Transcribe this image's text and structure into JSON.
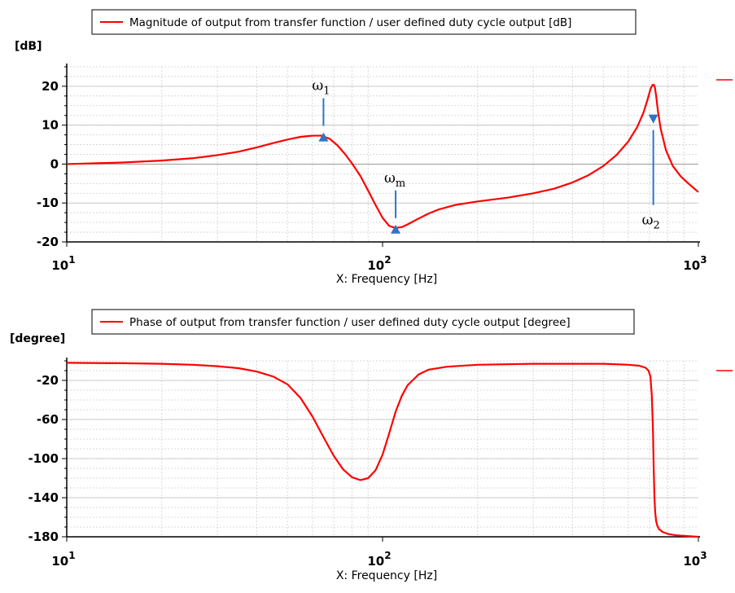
{
  "chart_data": [
    {
      "type": "line",
      "legend": "Magnitude of output from transfer function / user defined duty cycle output [dB]",
      "legend_position": "top",
      "ylabel": "[dB]",
      "xlabel": "X: Frequency [Hz]",
      "xscale": "log",
      "xlim": [
        10,
        1000
      ],
      "ylim": [
        -20,
        25
      ],
      "yticks": [
        20,
        10,
        0,
        -10,
        -20
      ],
      "xticks": [
        "10",
        "100",
        "1000"
      ],
      "grid": true,
      "color": "#ff0000",
      "series": [
        {
          "x": [
            10,
            15,
            20,
            25,
            30,
            35,
            40,
            45,
            50,
            55,
            60,
            64,
            68,
            72,
            76,
            80,
            85,
            90,
            95,
            100,
            105,
            110,
            115,
            120,
            130,
            140,
            150,
            170,
            200,
            250,
            300,
            350,
            400,
            450,
            500,
            550,
            600,
            640,
            670,
            690,
            705,
            715,
            722,
            728,
            735,
            745,
            760,
            790,
            830,
            880,
            930,
            980,
            1000
          ],
          "y": [
            0,
            0.4,
            0.9,
            1.5,
            2.3,
            3.2,
            4.3,
            5.4,
            6.3,
            7.0,
            7.3,
            7.3,
            6.5,
            4.8,
            2.6,
            0.2,
            -3.0,
            -6.8,
            -10.5,
            -13.8,
            -15.9,
            -16.4,
            -16.2,
            -15.5,
            -14.0,
            -12.7,
            -11.7,
            -10.5,
            -9.6,
            -8.6,
            -7.5,
            -6.3,
            -4.7,
            -2.8,
            -0.5,
            2.3,
            5.8,
            9.5,
            13.2,
            16.5,
            19.2,
            20.3,
            20.4,
            19.8,
            17.5,
            13.5,
            9.0,
            3.5,
            -0.5,
            -3.2,
            -5.0,
            -6.6,
            -7.2
          ]
        }
      ],
      "annotations": [
        {
          "symbol": "ω",
          "sub": "1",
          "x": 65,
          "y": 7.3
        },
        {
          "symbol": "ω",
          "sub": "m",
          "x": 110,
          "y": -16.4
        },
        {
          "symbol": "ω",
          "sub": "2",
          "x": 720,
          "y": 10
        }
      ]
    },
    {
      "type": "line",
      "legend": "Phase of output from transfer function / user defined duty cycle output [degree]",
      "legend_position": "top",
      "ylabel": "[degree]",
      "xlabel": "X: Frequency [Hz]",
      "xscale": "log",
      "xlim": [
        10,
        1000
      ],
      "ylim": [
        -180,
        0
      ],
      "yticks": [
        -20,
        -60,
        -100,
        -140,
        -180
      ],
      "xticks": [
        "10",
        "100",
        "1000"
      ],
      "grid": true,
      "color": "#ff0000",
      "series": [
        {
          "x": [
            10,
            15,
            20,
            25,
            30,
            35,
            40,
            45,
            50,
            55,
            60,
            65,
            70,
            75,
            80,
            85,
            90,
            95,
            100,
            105,
            110,
            115,
            120,
            130,
            140,
            160,
            200,
            300,
            400,
            500,
            600,
            650,
            680,
            695,
            705,
            712,
            718,
            722,
            726,
            730,
            735,
            742,
            750,
            770,
            800,
            850,
            900,
            1000
          ],
          "y": [
            -2,
            -2.4,
            -3,
            -4,
            -5.5,
            -7.5,
            -11,
            -16,
            -24,
            -38,
            -57,
            -78,
            -97,
            -111,
            -119,
            -122,
            -120,
            -112,
            -96,
            -74,
            -52,
            -36,
            -25,
            -14,
            -9,
            -6,
            -4,
            -3,
            -3,
            -3,
            -4,
            -5,
            -7,
            -10,
            -16,
            -35,
            -70,
            -110,
            -140,
            -155,
            -164,
            -169,
            -172,
            -175,
            -177,
            -178.5,
            -179,
            -180
          ]
        }
      ]
    }
  ]
}
